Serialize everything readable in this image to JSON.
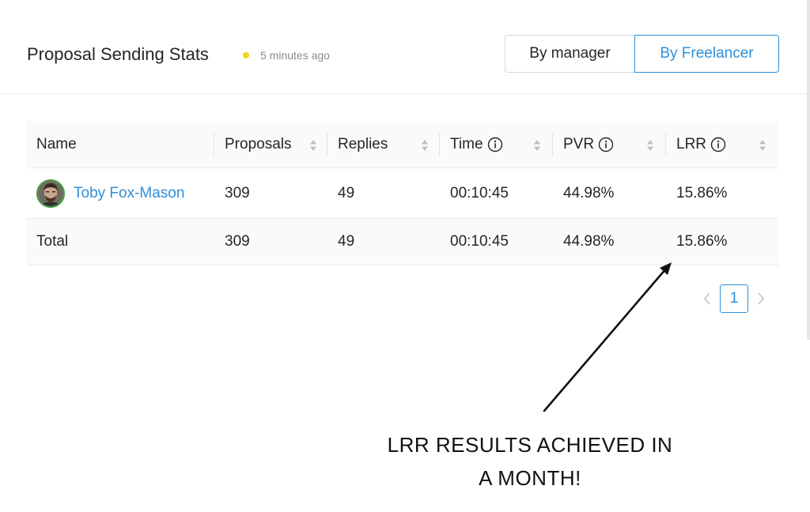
{
  "header": {
    "title": "Proposal Sending Stats",
    "status_color": "#f5d21c",
    "updated": "5 minutes ago",
    "toggle": {
      "by_manager": "By manager",
      "by_freelancer": "By Freelancer",
      "selected": "By Freelancer"
    }
  },
  "table": {
    "columns": {
      "name": "Name",
      "proposals": "Proposals",
      "replies": "Replies",
      "time": "Time",
      "pvr": "PVR",
      "lrr": "LRR"
    },
    "rows": [
      {
        "name": "Toby Fox-Mason",
        "proposals": "309",
        "replies": "49",
        "time": "00:10:45",
        "pvr": "44.98%",
        "lrr": "15.86%"
      }
    ],
    "total": {
      "label": "Total",
      "proposals": "309",
      "replies": "49",
      "time": "00:10:45",
      "pvr": "44.98%",
      "lrr": "15.86%"
    }
  },
  "pagination": {
    "current_page": "1"
  },
  "annotation": {
    "line1": "LRR RESULTS ACHIEVED IN",
    "line2": "A MONTH!"
  },
  "colors": {
    "accent": "#2f8fd8",
    "avatar_ring": "#3f9b3d"
  },
  "icons": {
    "info": "info-circle-icon",
    "sort": "sort-up-down-icon",
    "prev": "chevron-left-icon",
    "next": "chevron-right-icon",
    "arrow": "annotation-arrow-icon"
  }
}
